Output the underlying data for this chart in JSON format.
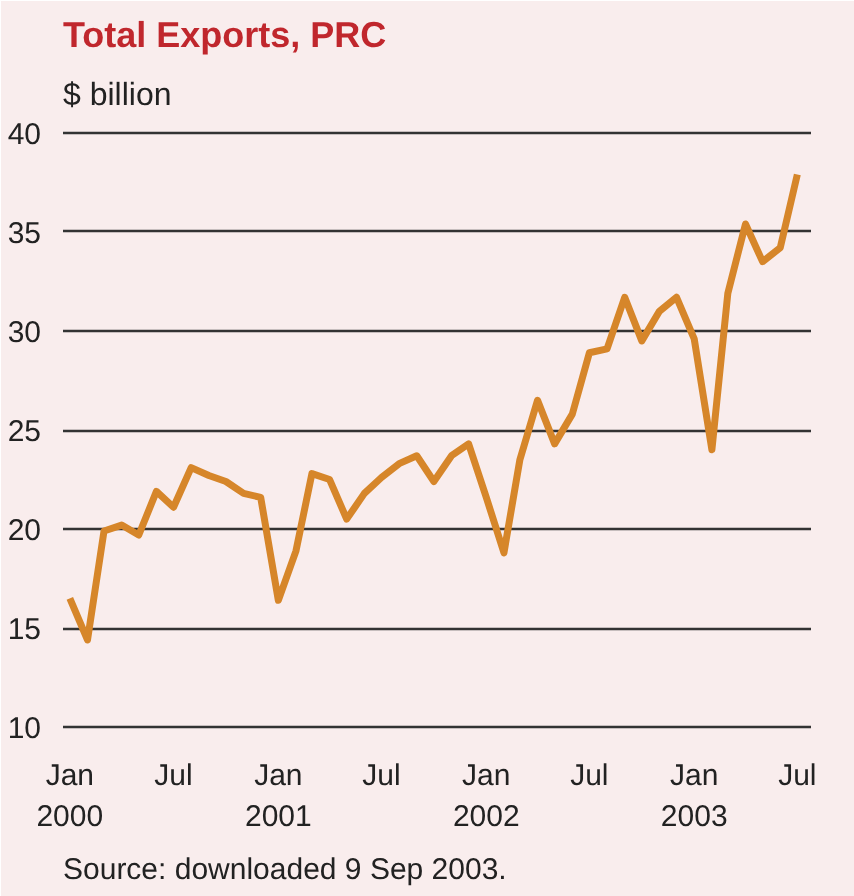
{
  "chart_data": {
    "type": "line",
    "title": "Total Exports, PRC",
    "ylabel": "$ billion",
    "annotations": [
      "Source: downloaded 9 Sep 2003."
    ],
    "x": [
      "2000-01",
      "2000-02",
      "2000-03",
      "2000-04",
      "2000-05",
      "2000-06",
      "2000-07",
      "2000-08",
      "2000-09",
      "2000-10",
      "2000-11",
      "2000-12",
      "2001-01",
      "2001-02",
      "2001-03",
      "2001-04",
      "2001-05",
      "2001-06",
      "2001-07",
      "2001-08",
      "2001-09",
      "2001-10",
      "2001-11",
      "2001-12",
      "2002-01",
      "2002-02",
      "2002-03",
      "2002-04",
      "2002-05",
      "2002-06",
      "2002-07",
      "2002-08",
      "2002-09",
      "2002-10",
      "2002-11",
      "2002-12",
      "2003-01",
      "2003-02",
      "2003-03",
      "2003-04",
      "2003-05",
      "2003-06",
      "2003-07"
    ],
    "series": [
      {
        "color": "#d6862a",
        "values": [
          16.5,
          14.4,
          19.9,
          20.2,
          19.7,
          21.9,
          21.1,
          23.1,
          22.7,
          22.4,
          21.8,
          21.6,
          16.4,
          18.9,
          22.8,
          22.5,
          20.5,
          21.8,
          22.6,
          23.3,
          23.7,
          22.4,
          23.7,
          24.3,
          21.6,
          18.8,
          23.5,
          26.5,
          24.3,
          25.8,
          28.9,
          29.1,
          31.7,
          29.5,
          31.0,
          31.7,
          29.6,
          24.0,
          31.9,
          35.4,
          33.5,
          34.2,
          37.9
        ]
      }
    ],
    "xlim": [
      "1999-12-20",
      "2003-07-25"
    ],
    "ylim": [
      9.5,
      40.5
    ],
    "yticks": [
      10,
      15,
      20,
      25,
      30,
      35,
      40
    ],
    "xticks": [
      {
        "value": "2000-01",
        "label": "Jan\n2000"
      },
      {
        "value": "2000-07",
        "label": "Jul"
      },
      {
        "value": "2001-01",
        "label": "Jan\n2001"
      },
      {
        "value": "2001-07",
        "label": "Jul"
      },
      {
        "value": "2002-01",
        "label": "Jan\n2002"
      },
      {
        "value": "2002-07",
        "label": "Jul"
      },
      {
        "value": "2003-01",
        "label": "Jan\n2003"
      },
      {
        "value": "2003-07",
        "label": "Jul"
      }
    ],
    "grid": "y",
    "line_style": "solid"
  }
}
